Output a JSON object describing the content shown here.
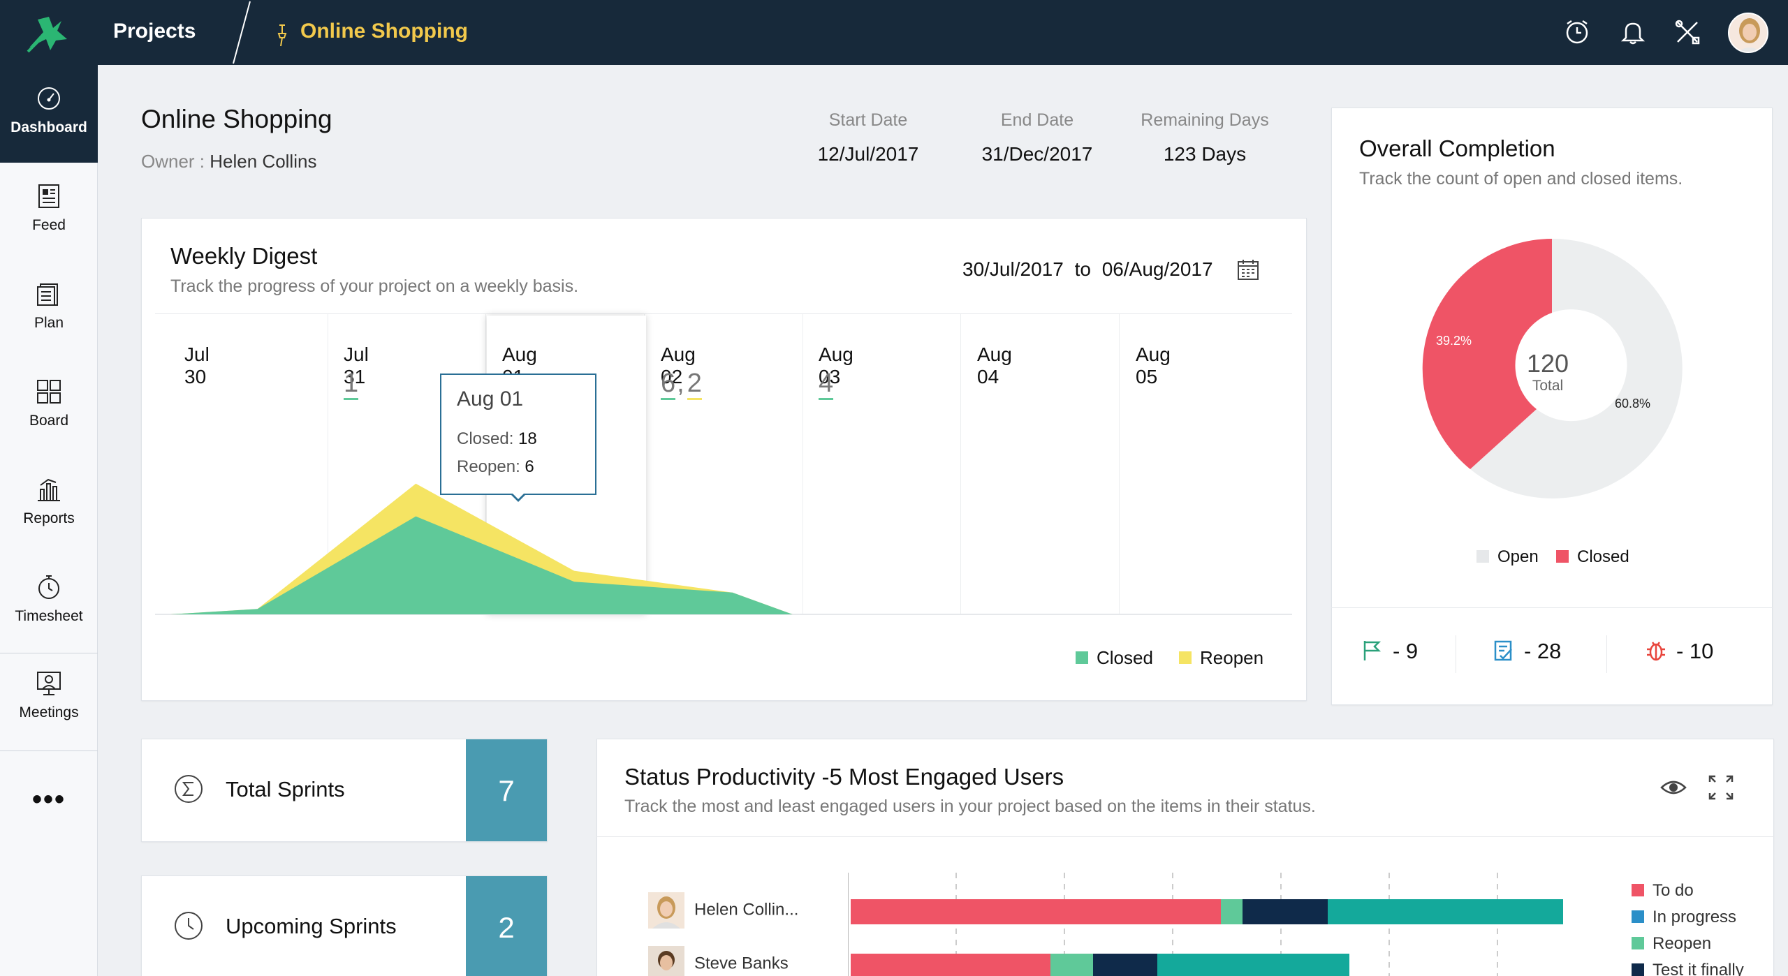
{
  "topbar": {
    "projects_label": "Projects",
    "current_project": "Online Shopping"
  },
  "sidebar": {
    "items": [
      {
        "label": "Dashboard",
        "icon": "dashboard-icon",
        "active": true
      },
      {
        "label": "Feed",
        "icon": "feed-icon"
      },
      {
        "label": "Plan",
        "icon": "plan-icon"
      },
      {
        "label": "Reports",
        "icon": "reports-icon"
      },
      {
        "label": "Board",
        "icon": "board-icon"
      },
      {
        "label": "Timesheet",
        "icon": "timesheet-icon"
      },
      {
        "label": "Meetings",
        "icon": "meetings-icon"
      }
    ],
    "more": "•••"
  },
  "header": {
    "title": "Online Shopping",
    "owner_label": "Owner :",
    "owner_name": "Helen Collins",
    "start_date_label": "Start Date",
    "start_date": "12/Jul/2017",
    "end_date_label": "End Date",
    "end_date": "31/Dec/2017",
    "remaining_label": "Remaining Days",
    "remaining": "123 Days"
  },
  "weekly_digest": {
    "title": "Weekly Digest",
    "subtitle": "Track the progress of your project on a weekly basis.",
    "range_start": "30/Jul/2017",
    "range_to": "to",
    "range_end": "06/Aug/2017",
    "days": [
      {
        "label": "Jul 30",
        "closed": "",
        "reopen": ""
      },
      {
        "label": "Jul 31",
        "closed": "1",
        "reopen": ""
      },
      {
        "label": "Aug 01",
        "closed": "",
        "reopen": ""
      },
      {
        "label": "Aug 02",
        "closed": "6",
        "reopen": "2"
      },
      {
        "label": "Aug 03",
        "closed": "4",
        "reopen": ""
      },
      {
        "label": "Aug 04",
        "closed": "",
        "reopen": ""
      },
      {
        "label": "Aug 05",
        "closed": "",
        "reopen": ""
      }
    ],
    "tooltip": {
      "title": "Aug 01",
      "closed_label": "Closed:",
      "closed_value": "18",
      "reopen_label": "Reopen:",
      "reopen_value": "6"
    },
    "legend": {
      "closed": "Closed",
      "reopen": "Reopen"
    },
    "colors": {
      "closed": "#5fc999",
      "reopen": "#f5e463"
    }
  },
  "overall_completion": {
    "title": "Overall Completion",
    "subtitle": "Track the count of open and closed items.",
    "total": "120",
    "total_label": "Total",
    "closed_pct": "39.2%",
    "open_pct": "60.8%",
    "legend": {
      "open": "Open",
      "closed": "Closed"
    },
    "colors": {
      "open": "#eceeef",
      "closed": "#ef5466"
    },
    "stats": [
      {
        "icon": "flag-icon",
        "value": "- 9"
      },
      {
        "icon": "task-icon",
        "value": "- 28"
      },
      {
        "icon": "bug-icon",
        "value": "- 10"
      }
    ]
  },
  "sprints": [
    {
      "label": "Total Sprints",
      "value": "7",
      "icon": "sigma-icon"
    },
    {
      "label": "Upcoming Sprints",
      "value": "2",
      "icon": "clock-icon"
    }
  ],
  "status_productivity": {
    "title": "Status Productivity -5 Most Engaged Users",
    "subtitle": "Track the most and least engaged users in your project based on the items in their status.",
    "users": [
      {
        "name": "Helen Collin...",
        "segments": [
          52,
          3,
          12,
          33
        ]
      },
      {
        "name": "Steve Banks",
        "segments": [
          28,
          6,
          9,
          27
        ]
      }
    ],
    "legend": [
      "To do",
      "In progress",
      "Reopen",
      "Test it finally"
    ],
    "colors": {
      "todo": "#ef5466",
      "in_progress": "#2b8fc8",
      "reopen": "#5fc999",
      "test": "#0f2a4a",
      "teal": "#14a99b"
    }
  },
  "chart_data": {
    "type": "area",
    "title": "Weekly Digest",
    "categories": [
      "Jul 30",
      "Jul 31",
      "Aug 01",
      "Aug 02",
      "Aug 03",
      "Aug 04",
      "Aug 05"
    ],
    "series": [
      {
        "name": "Closed",
        "values": [
          0,
          1,
          18,
          6,
          4,
          0,
          0
        ]
      },
      {
        "name": "Reopen",
        "values": [
          0,
          0,
          6,
          2,
          0,
          0,
          0
        ]
      }
    ]
  }
}
